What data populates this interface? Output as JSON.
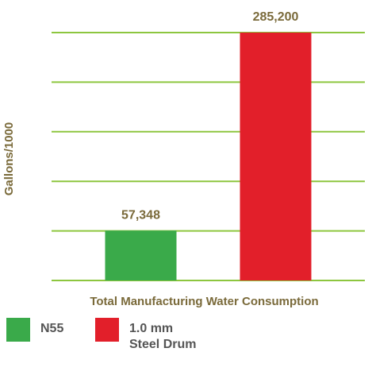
{
  "chart_data": {
    "type": "bar",
    "y_label": "Gallons/1000",
    "categories": [
      "Total Manufacturing Water Consumption"
    ],
    "series": [
      {
        "name": "N55",
        "color": "#3aaa4a",
        "values": [
          57348
        ],
        "value_labels": [
          "57,348"
        ]
      },
      {
        "name": "1.0 mm Steel Drum",
        "color": "#e21f2a",
        "values": [
          285200
        ],
        "value_labels": [
          "285,200"
        ]
      }
    ],
    "ylim": [
      0,
      285200
    ],
    "yticks": [
      0,
      57040,
      114080,
      171120,
      228160,
      285200
    ],
    "grid": true,
    "grid_color": "#8dc63f"
  }
}
